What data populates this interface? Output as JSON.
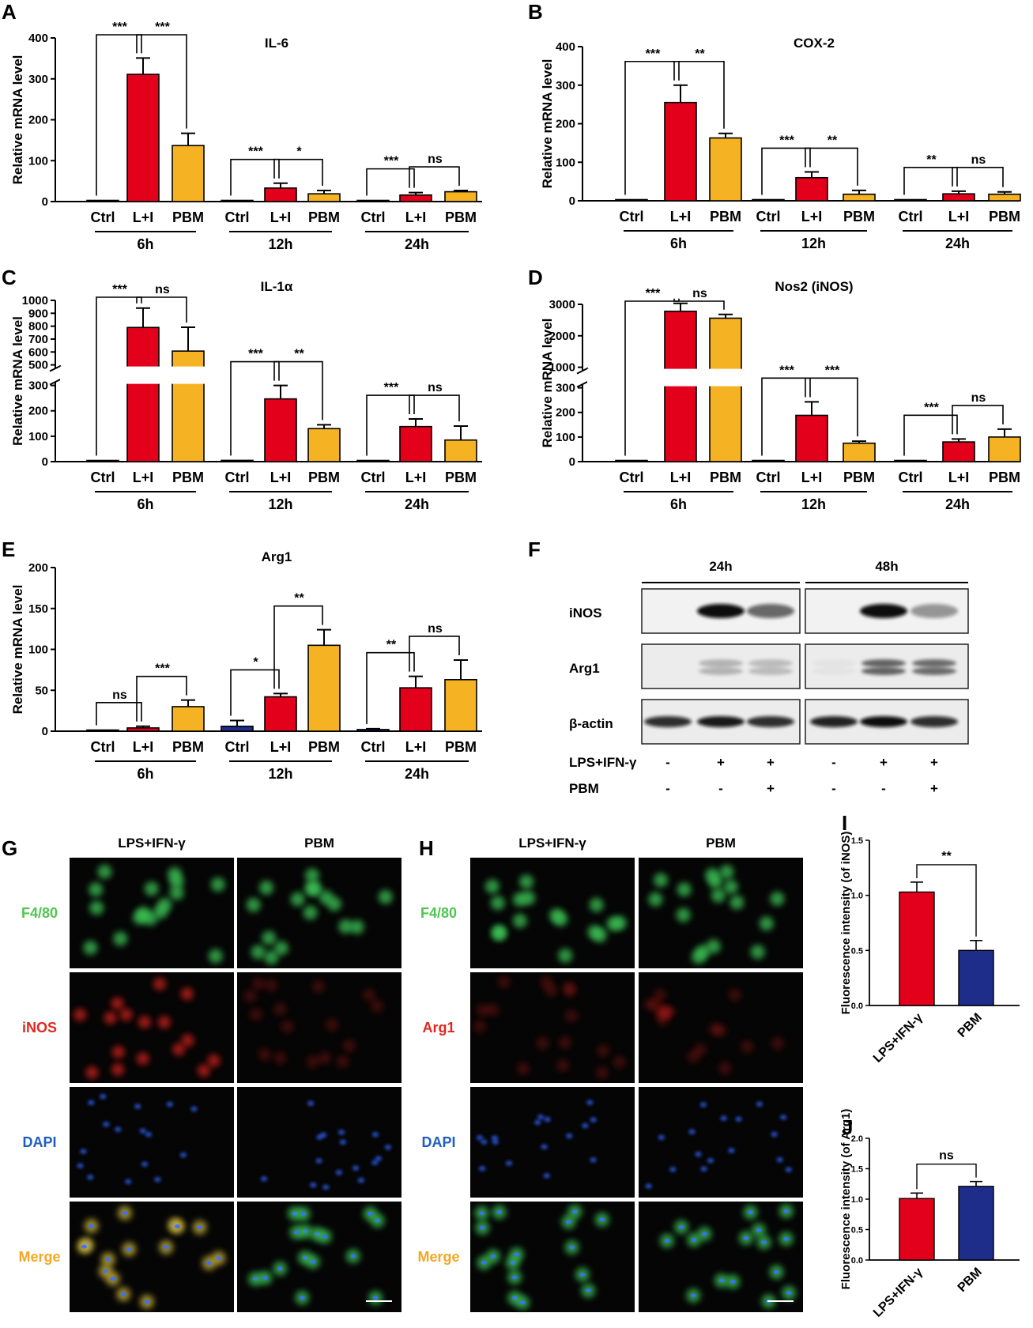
{
  "colors": {
    "ctrl": "#1f2d8a",
    "lps_ifn": "#e3001b",
    "pbm": "#f5b324",
    "frame": "#000000",
    "micrograph_bg": "#050505",
    "label_green": "#4fc64f",
    "label_red": "#e0281e",
    "label_blue": "#1f5fbf",
    "label_orange": "#f5a623"
  },
  "panel_letters": [
    "A",
    "B",
    "C",
    "D",
    "E",
    "F",
    "G",
    "H",
    "I",
    "J"
  ],
  "chart_data": [
    {
      "panel": "A",
      "type": "bar",
      "title": "IL-6",
      "ylabel": "Relative mRNA level",
      "ylim": [
        0,
        400
      ],
      "yticks": [
        "0",
        "100",
        "200",
        "300",
        "400"
      ],
      "categories": [
        "Ctrl",
        "L+I",
        "PBM",
        "Ctrl",
        "L+I",
        "PBM",
        "Ctrl",
        "L+I",
        "PBM"
      ],
      "groups": [
        "6h",
        "12h",
        "24h"
      ],
      "values": [
        1,
        311,
        137,
        1,
        33,
        19,
        1,
        16,
        24
      ],
      "errors": [
        0,
        40,
        30,
        0,
        12,
        8,
        0,
        6,
        3
      ],
      "significance": [
        {
          "from": 0,
          "to": 1,
          "text": "***"
        },
        {
          "from": 1,
          "to": 2,
          "text": "***"
        },
        {
          "from": 3,
          "to": 4,
          "text": "***"
        },
        {
          "from": 4,
          "to": 5,
          "text": "*"
        },
        {
          "from": 6,
          "to": 7,
          "text": "***"
        },
        {
          "from": 7,
          "to": 8,
          "text": "ns"
        }
      ]
    },
    {
      "panel": "B",
      "type": "bar",
      "title": "COX-2",
      "ylabel": "Relative mRNA level",
      "ylim": [
        0,
        400
      ],
      "yticks": [
        "0",
        "100",
        "200",
        "300",
        "400"
      ],
      "categories": [
        "Ctrl",
        "L+I",
        "PBM",
        "Ctrl",
        "L+I",
        "PBM",
        "Ctrl",
        "L+I",
        "PBM"
      ],
      "groups": [
        "6h",
        "12h",
        "24h"
      ],
      "values": [
        1,
        255,
        163,
        1,
        60,
        17,
        1,
        18,
        17
      ],
      "errors": [
        0,
        45,
        12,
        0,
        15,
        10,
        0,
        7,
        6
      ],
      "significance": [
        {
          "from": 0,
          "to": 1,
          "text": "***"
        },
        {
          "from": 1,
          "to": 2,
          "text": "**"
        },
        {
          "from": 3,
          "to": 4,
          "text": "***"
        },
        {
          "from": 4,
          "to": 5,
          "text": "**"
        },
        {
          "from": 6,
          "to": 7,
          "text": "**"
        },
        {
          "from": 7,
          "to": 8,
          "text": "ns"
        }
      ]
    },
    {
      "panel": "C",
      "type": "bar",
      "title": "IL-1α",
      "ylabel": "Relative mRNA level",
      "broken_axis": true,
      "ylim_lower": [
        0,
        300
      ],
      "yticks_lower": [
        "0",
        "100",
        "200",
        "300"
      ],
      "ylim_upper": [
        500,
        1000
      ],
      "yticks_upper": [
        "500",
        "600",
        "700",
        "800",
        "900",
        "1000"
      ],
      "categories": [
        "Ctrl",
        "L+I",
        "PBM",
        "Ctrl",
        "L+I",
        "PBM",
        "Ctrl",
        "L+I",
        "PBM"
      ],
      "groups": [
        "6h",
        "12h",
        "24h"
      ],
      "values": [
        1,
        790,
        607,
        5,
        247,
        130,
        1,
        138,
        85
      ],
      "errors": [
        0,
        150,
        185,
        0,
        75,
        15,
        0,
        30,
        55
      ],
      "significance": [
        {
          "from": 0,
          "to": 1,
          "text": "***"
        },
        {
          "from": 1,
          "to": 2,
          "text": "ns"
        },
        {
          "from": 3,
          "to": 4,
          "text": "***"
        },
        {
          "from": 4,
          "to": 5,
          "text": "**"
        },
        {
          "from": 6,
          "to": 7,
          "text": "***"
        },
        {
          "from": 7,
          "to": 8,
          "text": "ns"
        }
      ]
    },
    {
      "panel": "D",
      "type": "bar",
      "title": "Nos2 (iNOS)",
      "ylabel": "Relative mRNA level",
      "broken_axis": true,
      "ylim_lower": [
        0,
        300
      ],
      "yticks_lower": [
        "0",
        "100",
        "200",
        "300"
      ],
      "ylim_upper": [
        1000,
        3000
      ],
      "yticks_upper": [
        "1000",
        "2000",
        "3000"
      ],
      "categories": [
        "Ctrl",
        "L+I",
        "PBM",
        "Ctrl",
        "L+I",
        "PBM",
        "Ctrl",
        "L+I",
        "PBM"
      ],
      "groups": [
        "6h",
        "12h",
        "24h"
      ],
      "values": [
        1,
        2780,
        2560,
        3,
        188,
        75,
        1,
        80,
        100
      ],
      "errors": [
        0,
        250,
        120,
        0,
        55,
        8,
        0,
        12,
        32
      ],
      "significance": [
        {
          "from": 0,
          "to": 1,
          "text": "***"
        },
        {
          "from": 1,
          "to": 2,
          "text": "ns"
        },
        {
          "from": 3,
          "to": 4,
          "text": "***"
        },
        {
          "from": 4,
          "to": 5,
          "text": "***"
        },
        {
          "from": 6,
          "to": 7,
          "text": "***"
        },
        {
          "from": 7,
          "to": 8,
          "text": "ns"
        }
      ]
    },
    {
      "panel": "E",
      "type": "bar",
      "title": "Arg1",
      "ylabel": "Relative mRNA level",
      "ylim": [
        0,
        200
      ],
      "yticks": [
        "0",
        "50",
        "100",
        "150",
        "200"
      ],
      "categories": [
        "Ctrl",
        "L+I",
        "PBM",
        "Ctrl",
        "L+I",
        "PBM",
        "Ctrl",
        "L+I",
        "PBM"
      ],
      "groups": [
        "6h",
        "12h",
        "24h"
      ],
      "values": [
        1,
        4,
        30,
        6,
        42,
        105,
        2,
        53,
        63
      ],
      "errors": [
        0,
        2,
        8,
        7,
        4,
        19,
        1,
        14,
        24
      ],
      "significance": [
        {
          "from": 0,
          "to": 1,
          "text": "ns"
        },
        {
          "from": 1,
          "to": 2,
          "text": "***"
        },
        {
          "from": 3,
          "to": 4,
          "text": "*"
        },
        {
          "from": 4,
          "to": 5,
          "text": "**"
        },
        {
          "from": 6,
          "to": 7,
          "text": "**"
        },
        {
          "from": 7,
          "to": 8,
          "text": "ns"
        }
      ]
    },
    {
      "panel": "I",
      "type": "bar",
      "ylabel": "Fluorescence intensity (of iNOS)",
      "ylim": [
        0,
        1.5
      ],
      "yticks": [
        "0.0",
        "0.5",
        "1.0",
        "1.5"
      ],
      "categories": [
        "LPS+IFN-γ",
        "PBM"
      ],
      "values": [
        1.03,
        0.5
      ],
      "errors": [
        0.09,
        0.09
      ],
      "significance": [
        {
          "from": 0,
          "to": 1,
          "text": "**"
        }
      ]
    },
    {
      "panel": "J",
      "type": "bar",
      "ylabel": "Fluorescence intensity (of Arg1)",
      "ylim": [
        0,
        2.0
      ],
      "yticks": [
        "0.0",
        "0.5",
        "1.0",
        "1.5",
        "2.0"
      ],
      "categories": [
        "LPS+IFN-γ",
        "PBM"
      ],
      "values": [
        1.01,
        1.21
      ],
      "errors": [
        0.09,
        0.08
      ],
      "significance": [
        {
          "from": 0,
          "to": 1,
          "text": "ns"
        }
      ]
    }
  ],
  "western_blot": {
    "panel": "F",
    "timepoints": [
      "24h",
      "48h"
    ],
    "rows": [
      "iNOS",
      "Arg1",
      "β-actin"
    ],
    "treatment_rows": [
      {
        "label": "LPS+IFN-γ",
        "marks": [
          "-",
          "+",
          "+",
          "-",
          "+",
          "+"
        ]
      },
      {
        "label": "PBM",
        "marks": [
          "-",
          "-",
          "+",
          "-",
          "-",
          "+"
        ]
      }
    ],
    "band_intensity": {
      "iNOS": [
        0.0,
        1.0,
        0.6,
        0.0,
        1.0,
        0.4
      ],
      "Arg1": [
        0.0,
        0.35,
        0.3,
        0.05,
        0.85,
        0.8
      ],
      "β-actin": [
        0.85,
        0.95,
        0.85,
        0.9,
        1.0,
        0.85
      ]
    }
  },
  "micrographs": [
    {
      "panel": "G",
      "columns": [
        "LPS+IFN-γ",
        "PBM"
      ],
      "rows": [
        "F4/80",
        "iNOS",
        "DAPI",
        "Merge"
      ]
    },
    {
      "panel": "H",
      "columns": [
        "LPS+IFN-γ",
        "PBM"
      ],
      "rows": [
        "F4/80",
        "Arg1",
        "DAPI",
        "Merge"
      ]
    }
  ]
}
